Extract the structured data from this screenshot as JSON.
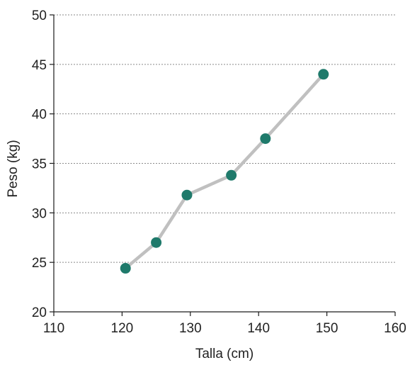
{
  "chart_data": {
    "type": "line",
    "title": "",
    "xlabel": "Talla (cm)",
    "ylabel": "Peso (kg)",
    "xlim": [
      110,
      160
    ],
    "ylim": [
      20,
      50
    ],
    "xticks": [
      110,
      120,
      130,
      140,
      150,
      160
    ],
    "yticks": [
      20,
      25,
      30,
      35,
      40,
      45,
      50
    ],
    "grid": "horizontal-dotted",
    "series": [
      {
        "x": [
          120.5,
          125,
          129.5,
          136,
          141,
          149.5
        ],
        "y": [
          24.4,
          27,
          31.8,
          33.8,
          37.5,
          44
        ],
        "line_color": "#c0c0c0",
        "marker_color": "#1f7a6b"
      }
    ]
  }
}
